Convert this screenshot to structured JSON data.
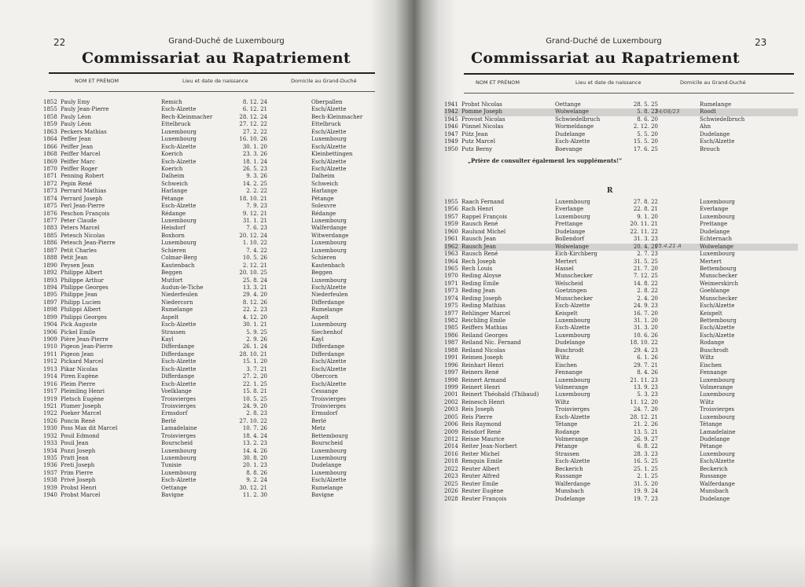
{
  "left_page": {
    "page_number": "22",
    "supertitle": "Grand-Duché de Luxembourg",
    "title": "Commissariat au Rapatriement",
    "columns": [
      "NOM ET PRÉNOM",
      "Lieu et date de naissance",
      "Domicile au Grand-Duché"
    ],
    "rows": [
      [
        "1852",
        "Pauly Emy",
        "Remich",
        "8. 12. 24",
        "Oberpallen"
      ],
      [
        "1855",
        "Pauly Jean-Pierre",
        "Esch-Alzette",
        "6. 12. 21",
        "Esch/Alzette"
      ],
      [
        "1858",
        "Pauly Léon",
        "Bech-Kleinmacher",
        "28. 12. 24",
        "Bech-Kleinmacher"
      ],
      [
        "1859",
        "Pauly Léon",
        "Ettelbruck",
        "27. 12. 22",
        "Ettelbruck"
      ],
      [
        "1863",
        "Peckers Mathias",
        "Luxembourg",
        "27. 2. 22",
        "Esch/Alzette"
      ],
      [
        "1864",
        "Peffer Jean",
        "Luxembourg",
        "16. 10. 26",
        "Luxembourg"
      ],
      [
        "1866",
        "Peiffer Jean",
        "Esch-Alzette",
        "30. 1. 20",
        "Esch/Alzette"
      ],
      [
        "1868",
        "Peiffer Marcel",
        "Koerich",
        "23. 3. 26",
        "Kleinbettingen"
      ],
      [
        "1869",
        "Peiffer Marc",
        "Esch-Alzette",
        "18. 1. 24",
        "Esch/Alzette"
      ],
      [
        "1870",
        "Peiffer Roger",
        "Koerich",
        "26. 5. 23",
        "Esch/Alzette"
      ],
      [
        "1871",
        "Penning Robert",
        "Dalheim",
        "9. 3. 26",
        "Dalheim"
      ],
      [
        "1872",
        "Pepin René",
        "Schweich",
        "14. 2. 25",
        "Schweich"
      ],
      [
        "1873",
        "Perrard Mathias",
        "Harlange",
        "2. 2. 22",
        "Harlange"
      ],
      [
        "1874",
        "Perrard Joseph",
        "Pétange",
        "18. 10. 21",
        "Pétange"
      ],
      [
        "1875",
        "Perl Jean-Pierre",
        "Esch-Alzette",
        "7. 9. 23",
        "Soleuvre"
      ],
      [
        "1876",
        "Peschon François",
        "Rédange",
        "9. 12. 21",
        "Rédange"
      ],
      [
        "1877",
        "Peter Claude",
        "Luxembourg",
        "31. 1. 21",
        "Luxembourg"
      ],
      [
        "1883",
        "Peters Marcel",
        "Heisdorf",
        "7. 6. 23",
        "Walferdange"
      ],
      [
        "1885",
        "Petesch Nicolas",
        "Boxhorn",
        "20. 12. 24",
        "Witwerdange"
      ],
      [
        "1886",
        "Petesch Jean-Pierre",
        "Luxembourg",
        "1. 10. 22",
        "Luxembourg"
      ],
      [
        "1887",
        "Petit Charles",
        "Schieren",
        "7. 4. 22",
        "Luxembourg"
      ],
      [
        "1888",
        "Petit Jean",
        "Colmar-Berg",
        "10. 5. 26",
        "Schieren"
      ],
      [
        "1890",
        "Peysen Jean",
        "Kautenbach",
        "2. 12. 21",
        "Kautenbach"
      ],
      [
        "1892",
        "Philippe Albert",
        "Beggen",
        "20. 10. 25",
        "Beggen"
      ],
      [
        "1893",
        "Philippe Arthur",
        "Mutfort",
        "25. 8. 24",
        "Luxembourg"
      ],
      [
        "1894",
        "Philippe Georges",
        "Audun-le-Tiche",
        "13. 3. 21",
        "Esch/Alzette"
      ],
      [
        "1895",
        "Philippe Jean",
        "Niederfeulen",
        "29. 4. 20",
        "Niederfeulen"
      ],
      [
        "1897",
        "Philipp Lucien",
        "Niedercorn",
        "8. 12. 26",
        "Differdange"
      ],
      [
        "1898",
        "Philippi Albert",
        "Rumelange",
        "22. 2. 23",
        "Rumelange"
      ],
      [
        "1899",
        "Philippi Georges",
        "Aspelt",
        "4. 12. 20",
        "Aspelt"
      ],
      [
        "1904",
        "Pick Auguste",
        "Esch-Alzette",
        "30. 1. 21",
        "Luxembourg"
      ],
      [
        "1906",
        "Pickel Emile",
        "Strassen",
        "5. 9. 25",
        "Siechenhof"
      ],
      [
        "1909",
        "Pière Jean-Pierre",
        "Kayl",
        "2. 9. 26",
        "Kayl"
      ],
      [
        "1910",
        "Pigeon Jean-Pierre",
        "Differdange",
        "26. 1. 24",
        "Differdange"
      ],
      [
        "1911",
        "Pigeon Jean",
        "Differdange",
        "28. 10. 21",
        "Differdange"
      ],
      [
        "1912",
        "Pickard Marcel",
        "Esch-Alzette",
        "15. 1. 20",
        "Esch/Alzette"
      ],
      [
        "1913",
        "Pikar Nicolas",
        "Esch-Alzette",
        "3. 7. 21",
        "Esch/Alzette"
      ],
      [
        "1914",
        "Piren Eugène",
        "Differdange",
        "27. 2. 20",
        "Obercorn"
      ],
      [
        "1916",
        "Pleim Pierre",
        "Esch-Alzette",
        "22. 1. 25",
        "Esch/Alzette"
      ],
      [
        "1917",
        "Pleimling Henri",
        "Voelklange",
        "15. 8. 21",
        "Cessange"
      ],
      [
        "1919",
        "Pletsch Eugène",
        "Troisvierges",
        "10. 5. 25",
        "Troisvierges"
      ],
      [
        "1921",
        "Plumer Joseph",
        "Troisvierges",
        "24. 9. 20",
        "Troisvierges"
      ],
      [
        "1922",
        "Poeker Marcel",
        "Ermsdorf",
        "2. 8. 23",
        "Ermsdorf"
      ],
      [
        "1926",
        "Poncin René",
        "Berlé",
        "27. 10. 22",
        "Berlé"
      ],
      [
        "1930",
        "Poss Max dit Marcel",
        "Lamadelaine",
        "10. 7. 26",
        "Metz"
      ],
      [
        "1932",
        "Pouil Edmond",
        "Troisvierges",
        "18. 4. 24",
        "Bettembourg"
      ],
      [
        "1933",
        "Pouil Jean",
        "Bourscheid",
        "13. 2. 23",
        "Bourscheid"
      ],
      [
        "1934",
        "Pozzi Joseph",
        "Luxembourg",
        "14. 4. 26",
        "Luxembourg"
      ],
      [
        "1935",
        "Pratt Jean",
        "Luxembourg",
        "30. 8. 20",
        "Luxembourg"
      ],
      [
        "1936",
        "Preti Joseph",
        "Tunisie",
        "20. 1. 23",
        "Dudelange"
      ],
      [
        "1937",
        "Prim Pierre",
        "Luxembourg",
        "8. 8. 26",
        "Luxembourg"
      ],
      [
        "1938",
        "Privé Joseph",
        "Esch-Alzette",
        "9. 2. 24",
        "Esch/Alzette"
      ],
      [
        "1939",
        "Probst Henri",
        "Oettange",
        "30. 12. 21",
        "Rumelange"
      ],
      [
        "1940",
        "Probst Marcel",
        "Bavigne",
        "11. 2. 30",
        "Bavigne"
      ]
    ]
  },
  "right_page": {
    "page_number": "23",
    "supertitle": "Grand-Duché de Luxembourg",
    "title": "Commissariat au Rapatriement",
    "columns": [
      "NOM ET PRÉNOM",
      "Lieu et date de naissance",
      "Domicile au Grand-Duché"
    ],
    "rows_p": [
      [
        "1941",
        "Probst Nicolas",
        "Oettange",
        "28. 5. 25",
        "Rumelange"
      ],
      [
        "1942",
        "Pomme Joseph",
        "Wolwelange",
        "5. 8. 23",
        "Roodt"
      ],
      [
        "1945",
        "Provost Nicolas",
        "Schwiedelbruch",
        "8. 6. 20",
        "Schwiedelbruch"
      ],
      [
        "1946",
        "Pünnel Nicolas",
        "Wormeldange",
        "2. 12. 20",
        "Ahn"
      ],
      [
        "1947",
        "Pütz Jean",
        "Dudelange",
        "5. 5. 20",
        "Dudelange"
      ],
      [
        "1949",
        "Putz Marcel",
        "Esch-Alzette",
        "15. 5. 20",
        "Esch/Alzette"
      ],
      [
        "1950",
        "Putz Berny",
        "Boevange",
        "17. 6. 25",
        "Brouch"
      ]
    ],
    "notice": "„Prière de consulter également les suppléments!“",
    "section_letter": "R",
    "rows_r": [
      [
        "1955",
        "Raach Fernand",
        "Luxembourg",
        "27. 8. 22",
        "Luxembourg"
      ],
      [
        "1956",
        "Rach Henri",
        "Everlange",
        "22. 8. 21",
        "Everlange"
      ],
      [
        "1957",
        "Rappel François",
        "Luxembourg",
        "9. 1. 20",
        "Luxembourg"
      ],
      [
        "1959",
        "Rausch René",
        "Prettange",
        "20. 11. 21",
        "Prettange"
      ],
      [
        "1960",
        "Raulund Michel",
        "Dudelange",
        "22. 11. 22",
        "Dudelange"
      ],
      [
        "1961",
        "Rausch Jean",
        "Bollendorf",
        "31. 3. 23",
        "Echternach"
      ],
      [
        "1962",
        "Rausch Jean",
        "Wolwelange",
        "20. 4. 21",
        "Wolwelange"
      ],
      [
        "1963",
        "Rausch René",
        "Eich-Kirchberg",
        "2. 7. 23",
        "Luxembourg"
      ],
      [
        "1964",
        "Rech Joseph",
        "Mertert",
        "31. 5. 25",
        "Mertert"
      ],
      [
        "1965",
        "Rech Louis",
        "Hassel",
        "21. 7. 20",
        "Bettembourg"
      ],
      [
        "1970",
        "Reding Aloyse",
        "Munschecker",
        "7. 12. 25",
        "Munschecker"
      ],
      [
        "1971",
        "Reding Emile",
        "Welscheid",
        "14. 8. 22",
        "Weimerskirch"
      ],
      [
        "1973",
        "Reding Jean",
        "Goetzingen",
        "2. 8. 22",
        "Goeblange"
      ],
      [
        "1974",
        "Reding Joseph",
        "Munschecker",
        "2. 4. 20",
        "Munschecker"
      ],
      [
        "1975",
        "Reding Mathias",
        "Esch-Alzette",
        "24. 9. 23",
        "Esch/Alzette"
      ],
      [
        "1977",
        "Rehlinger Marcel",
        "Keispelt",
        "16. 7. 20",
        "Keispelt"
      ],
      [
        "1982",
        "Reichling Emile",
        "Luxembourg",
        "31. 1. 20",
        "Bettembourg"
      ],
      [
        "1985",
        "Reiffers Mathias",
        "Esch-Alzette",
        "31. 3. 20",
        "Esch/Alzette"
      ],
      [
        "1986",
        "Reiland Georges",
        "Luxembourg",
        "10. 6. 26",
        "Esch/Alzette"
      ],
      [
        "1987",
        "Reiland Nic. Fernand",
        "Dudelange",
        "18. 10. 22",
        "Rodange"
      ],
      [
        "1988",
        "Reiland Nicolas",
        "Buschrodt",
        "29. 4. 23",
        "Buschrodt"
      ],
      [
        "1991",
        "Reimen Joseph",
        "Wiltz",
        "6. 1. 26",
        "Wiltz"
      ],
      [
        "1996",
        "Reinhart Henri",
        "Eischen",
        "29. 7. 21",
        "Eischen"
      ],
      [
        "1997",
        "Reiners René",
        "Fennange",
        "8. 4. 26",
        "Fennange"
      ],
      [
        "1998",
        "Reinert Armand",
        "Luxembourg",
        "21. 11. 23",
        "Luxembourg"
      ],
      [
        "1999",
        "Reinert Henri",
        "Volmerange",
        "13. 9. 23",
        "Volmerange"
      ],
      [
        "2001",
        "Reinert Théobald (Thibaud)",
        "Luxembourg",
        "5. 3. 23",
        "Luxembourg"
      ],
      [
        "2002",
        "Reinesch Henri",
        "Wiltz",
        "11. 12. 20",
        "Wiltz"
      ],
      [
        "2003",
        "Reis Joseph",
        "Troisvierges",
        "24. 7. 20",
        "Troisvierges"
      ],
      [
        "2005",
        "Reis Pierre",
        "Esch-Alzette",
        "28. 12. 21",
        "Luxembourg"
      ],
      [
        "2006",
        "Reis Raymond",
        "Tétange",
        "21. 2. 26",
        "Tétange"
      ],
      [
        "2009",
        "Reisdorf René",
        "Rodange",
        "13. 5. 21",
        "Lamadelaine"
      ],
      [
        "2012",
        "Reisse Maurice",
        "Volmerange",
        "26. 9. 27",
        "Dudelange"
      ],
      [
        "2014",
        "Reiter Jean-Norbert",
        "Pétange",
        "6. 8. 22",
        "Pétange"
      ],
      [
        "2016",
        "Reiter Michel",
        "Strassen",
        "28. 3. 23",
        "Luxembourg"
      ],
      [
        "2018",
        "Renquin Emile",
        "Esch-Alzette",
        "16. 5. 25",
        "Esch/Alzette"
      ],
      [
        "2022",
        "Reuter Albert",
        "Beckerich",
        "25. 1. 25",
        "Beckerich"
      ],
      [
        "2023",
        "Reuter Alfred",
        "Russange",
        "2. 1. 25",
        "Russange"
      ],
      [
        "2025",
        "Reuter Emile",
        "Walferdange",
        "31. 5. 20",
        "Walferdange"
      ],
      [
        "2026",
        "Reuter Eugène",
        "Munsbach",
        "19. 9. 24",
        "Munsbach"
      ],
      [
        "2028",
        "Reuter François",
        "Dudelange",
        "19. 7. 23",
        "Dudelange"
      ]
    ],
    "handwritten_notes": [
      "24/08/23",
      "05.4.21 A"
    ],
    "highlighted_rows": [
      "1942",
      "1962"
    ]
  }
}
